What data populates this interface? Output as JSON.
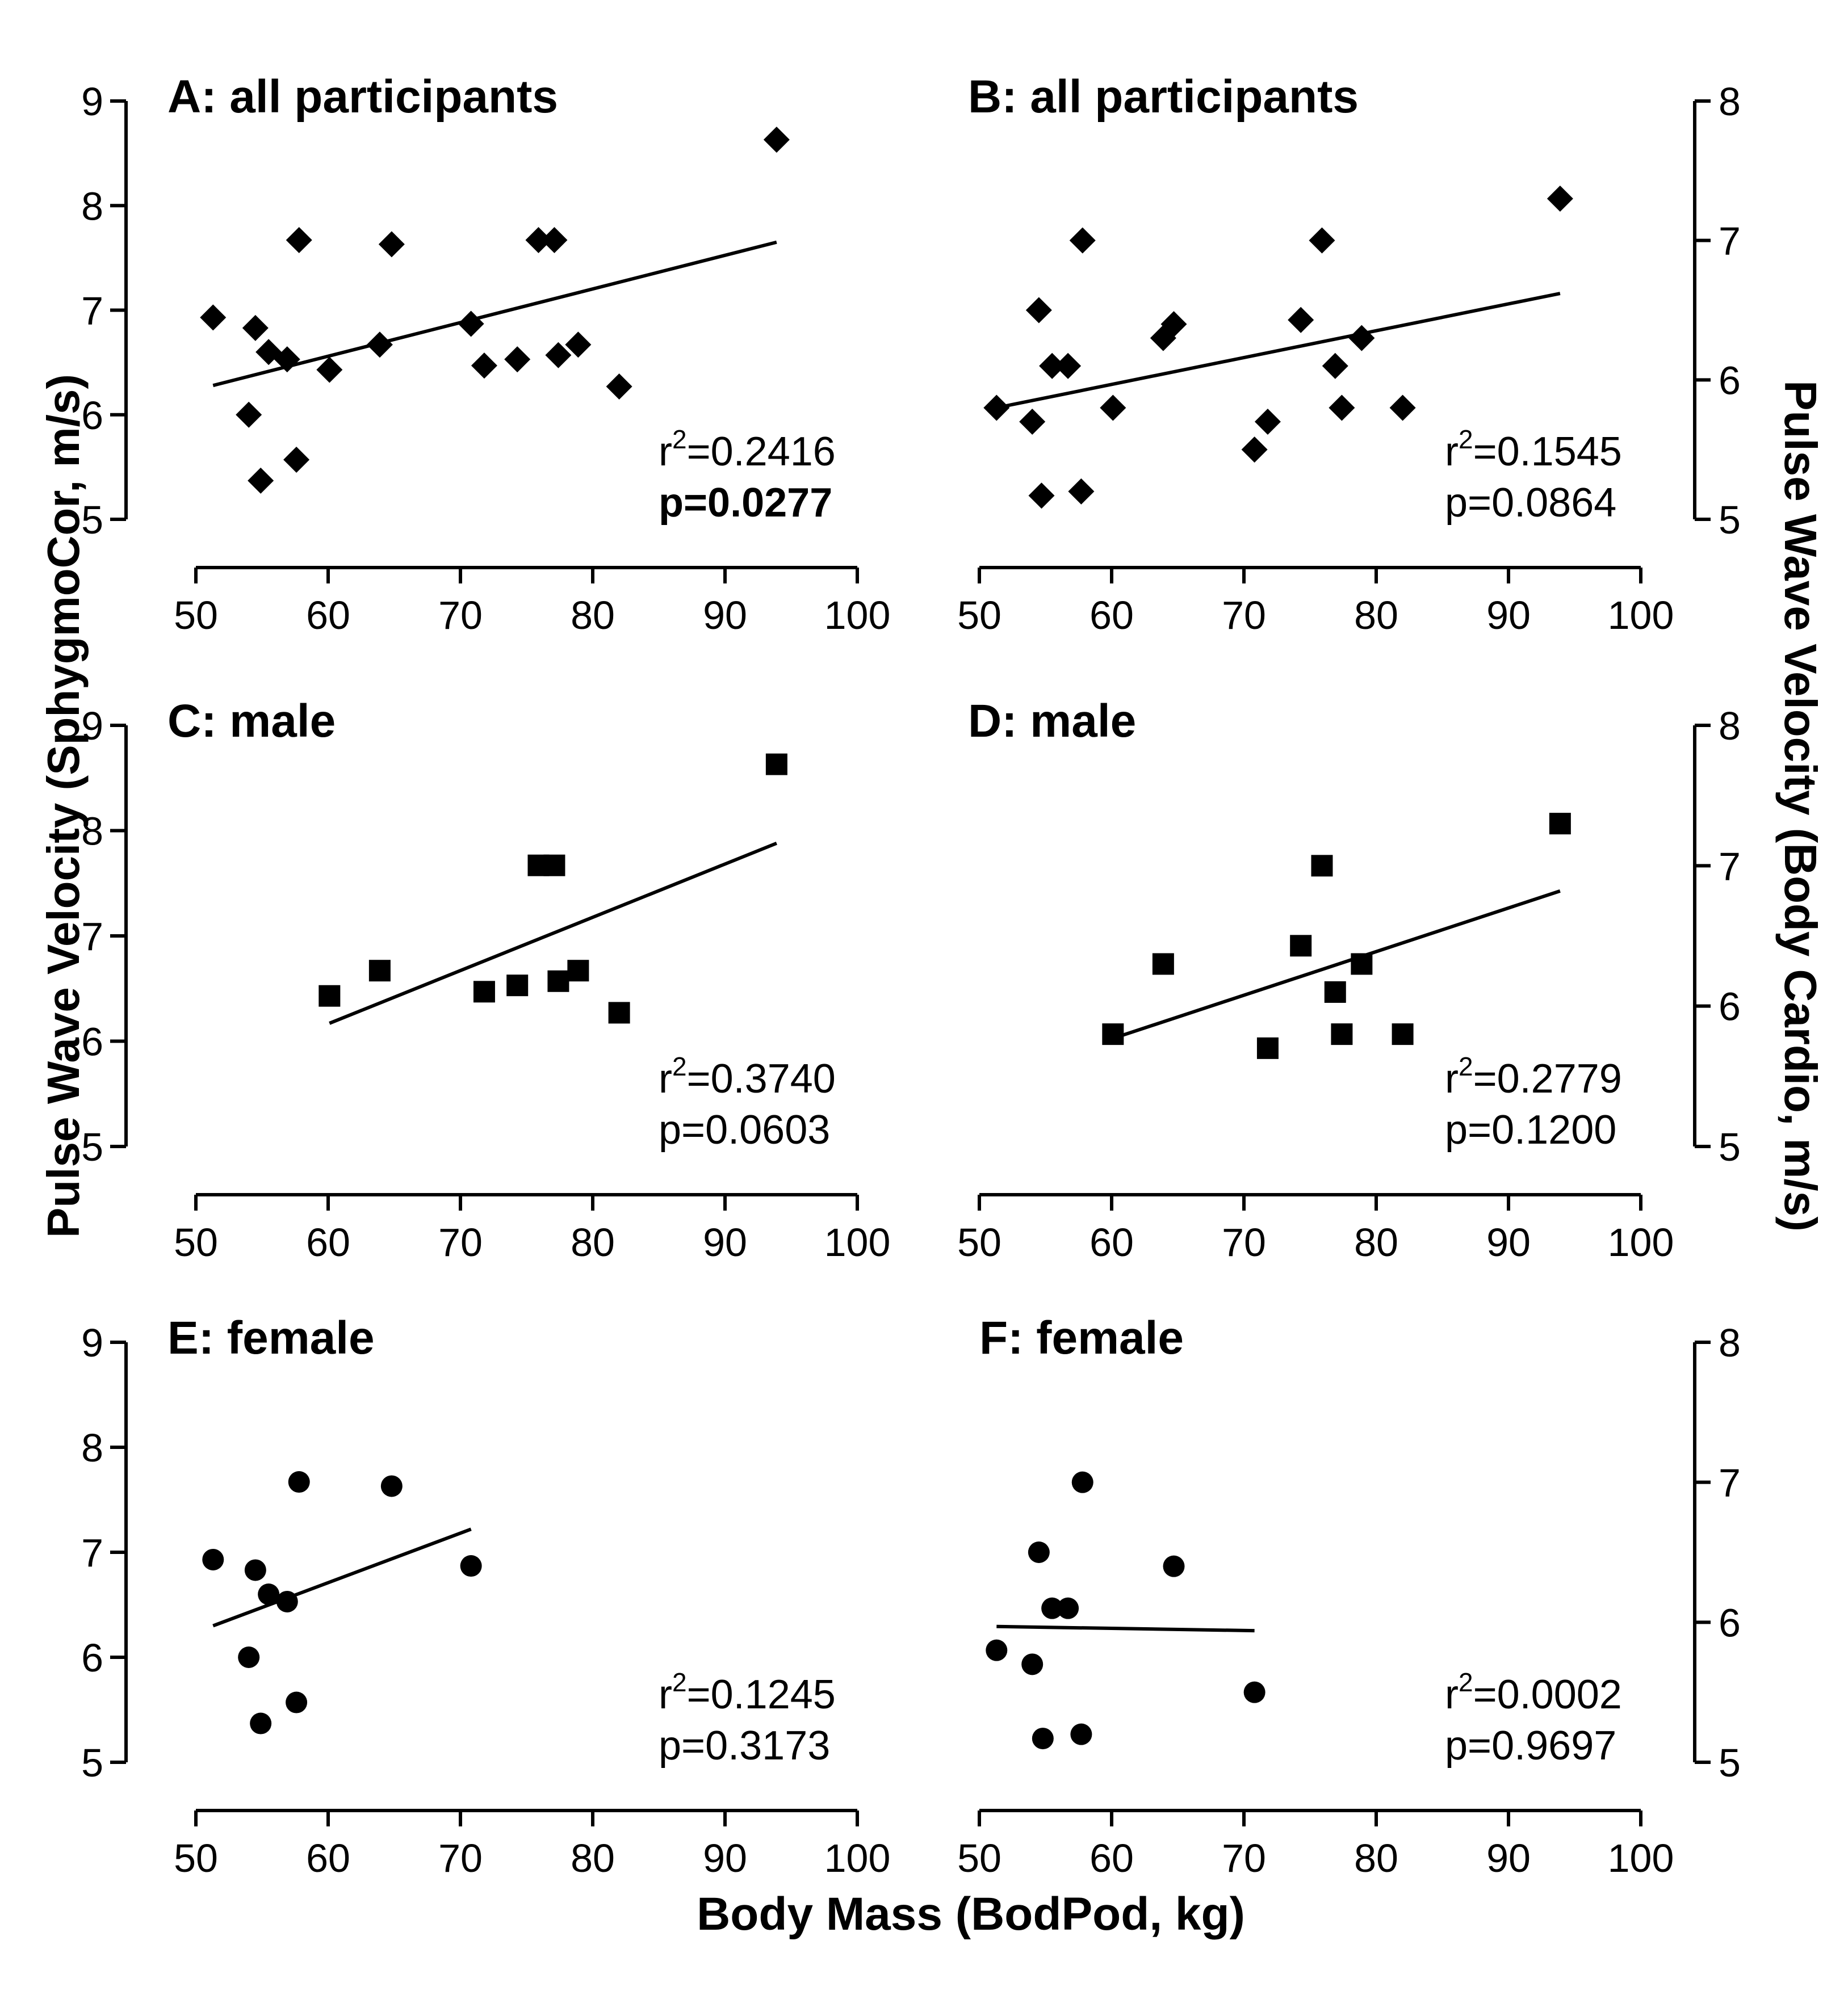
{
  "figure": {
    "y_label_left": "Pulse Wave Velocity (SphygmoCor, m/s)",
    "y_label_right": "Pulse Wave Velocity (Body Cardio, m/s)",
    "x_label": "Body Mass (BodPod, kg)"
  },
  "chart_data": [
    {
      "id": "A",
      "type": "scatter",
      "title": "A: all participants",
      "xlim": [
        50,
        100
      ],
      "x_ticks": [
        50,
        60,
        70,
        80,
        90,
        100
      ],
      "ylim": [
        5,
        9
      ],
      "y_ticks": [
        5,
        6,
        7,
        8,
        9
      ],
      "y_axis_side": "left",
      "marker": "diamond",
      "x": [
        51.3,
        54.5,
        54.0,
        54.9,
        55.5,
        56.9,
        57.6,
        57.8,
        60.1,
        63.9,
        64.8,
        70.8,
        71.8,
        74.3,
        75.9,
        77.1,
        77.4,
        78.9,
        82.0,
        93.9
      ],
      "y": [
        6.93,
        6.83,
        6.0,
        5.37,
        6.6,
        6.53,
        5.57,
        7.67,
        6.43,
        6.67,
        7.63,
        6.87,
        6.47,
        6.53,
        7.67,
        7.67,
        6.57,
        6.67,
        6.27,
        8.63
      ],
      "fit": {
        "x": [
          51.3,
          93.9
        ],
        "y": [
          6.28,
          7.65
        ]
      },
      "r2_prefix": "r",
      "r2_sup": "2",
      "r2_value": "=0.2416",
      "p_text": "p=0.0277",
      "p_bold": true
    },
    {
      "id": "B",
      "type": "scatter",
      "title": "B: all participants",
      "xlim": [
        50,
        100
      ],
      "x_ticks": [
        50,
        60,
        70,
        80,
        90,
        100
      ],
      "ylim": [
        5,
        8
      ],
      "y_ticks": [
        5,
        6,
        7,
        8
      ],
      "y_axis_side": "right",
      "marker": "diamond",
      "x": [
        51.3,
        54.0,
        54.5,
        54.7,
        55.5,
        56.7,
        57.7,
        57.8,
        60.1,
        63.9,
        64.7,
        70.8,
        71.8,
        74.3,
        75.9,
        76.9,
        77.4,
        78.9,
        82.0,
        93.9
      ],
      "y": [
        5.8,
        5.7,
        6.5,
        5.17,
        6.1,
        6.1,
        5.2,
        7.0,
        5.8,
        6.3,
        6.4,
        5.5,
        5.7,
        6.43,
        7.0,
        6.1,
        5.8,
        6.3,
        5.8,
        7.3
      ],
      "fit": {
        "x": [
          51.3,
          93.9
        ],
        "y": [
          5.8,
          6.62
        ]
      },
      "r2_prefix": "r",
      "r2_sup": "2",
      "r2_value": "=0.1545",
      "p_text": "p=0.0864",
      "p_bold": false
    },
    {
      "id": "C",
      "type": "scatter",
      "title": "C: male",
      "xlim": [
        50,
        100
      ],
      "x_ticks": [
        50,
        60,
        70,
        80,
        90,
        100
      ],
      "ylim": [
        5,
        9
      ],
      "y_ticks": [
        5,
        6,
        7,
        8,
        9
      ],
      "y_axis_side": "left",
      "marker": "square",
      "x": [
        60.1,
        63.9,
        71.8,
        74.3,
        75.9,
        77.1,
        77.4,
        78.9,
        82.0,
        93.9
      ],
      "y": [
        6.43,
        6.67,
        6.47,
        6.53,
        7.67,
        7.67,
        6.57,
        6.67,
        6.27,
        8.63
      ],
      "fit": {
        "x": [
          60.1,
          93.9
        ],
        "y": [
          6.17,
          7.88
        ]
      },
      "r2_prefix": "r",
      "r2_sup": "2",
      "r2_value": "=0.3740",
      "p_text": "p=0.0603",
      "p_bold": false
    },
    {
      "id": "D",
      "type": "scatter",
      "title": "D: male",
      "xlim": [
        50,
        100
      ],
      "x_ticks": [
        50,
        60,
        70,
        80,
        90,
        100
      ],
      "ylim": [
        5,
        8
      ],
      "y_ticks": [
        5,
        6,
        7,
        8
      ],
      "y_axis_side": "right",
      "marker": "square",
      "x": [
        60.1,
        63.9,
        71.8,
        74.3,
        75.9,
        76.9,
        77.4,
        78.9,
        82.0,
        93.9
      ],
      "y": [
        5.8,
        6.3,
        5.7,
        6.43,
        7.0,
        6.1,
        5.8,
        6.3,
        5.8,
        7.3
      ],
      "fit": {
        "x": [
          60.1,
          93.9
        ],
        "y": [
          5.77,
          6.82
        ]
      },
      "r2_prefix": "r",
      "r2_sup": "2",
      "r2_value": "=0.2779",
      "p_text": "p=0.1200",
      "p_bold": false
    },
    {
      "id": "E",
      "type": "scatter",
      "title": "E: female",
      "xlim": [
        50,
        100
      ],
      "x_ticks": [
        50,
        60,
        70,
        80,
        90,
        100
      ],
      "ylim": [
        5,
        9
      ],
      "y_ticks": [
        5,
        6,
        7,
        8,
        9
      ],
      "y_axis_side": "left",
      "marker": "circle",
      "x": [
        51.3,
        54.5,
        54.0,
        54.9,
        55.5,
        56.9,
        57.6,
        57.8,
        64.8,
        70.8
      ],
      "y": [
        6.93,
        6.83,
        6.0,
        5.37,
        6.6,
        6.53,
        5.57,
        7.67,
        7.63,
        6.87
      ],
      "fit": {
        "x": [
          51.3,
          70.8
        ],
        "y": [
          6.3,
          7.22
        ]
      },
      "r2_prefix": "r",
      "r2_sup": "2",
      "r2_value": "=0.1245",
      "p_text": "p=0.3173",
      "p_bold": false
    },
    {
      "id": "F",
      "type": "scatter",
      "title": "F: female",
      "xlim": [
        50,
        100
      ],
      "x_ticks": [
        50,
        60,
        70,
        80,
        90,
        100
      ],
      "ylim": [
        5,
        8
      ],
      "y_ticks": [
        5,
        6,
        7,
        8
      ],
      "y_axis_side": "right",
      "marker": "circle",
      "x": [
        51.3,
        54.0,
        54.5,
        54.8,
        55.5,
        56.7,
        57.7,
        57.8,
        64.7,
        70.8
      ],
      "y": [
        5.8,
        5.7,
        6.5,
        5.17,
        6.1,
        6.1,
        5.2,
        7.0,
        6.4,
        5.5
      ],
      "fit": {
        "x": [
          51.3,
          70.8
        ],
        "y": [
          5.97,
          5.94
        ]
      },
      "r2_prefix": "r",
      "r2_sup": "2",
      "r2_value": "=0.0002",
      "p_text": "p=0.9697",
      "p_bold": false
    }
  ]
}
